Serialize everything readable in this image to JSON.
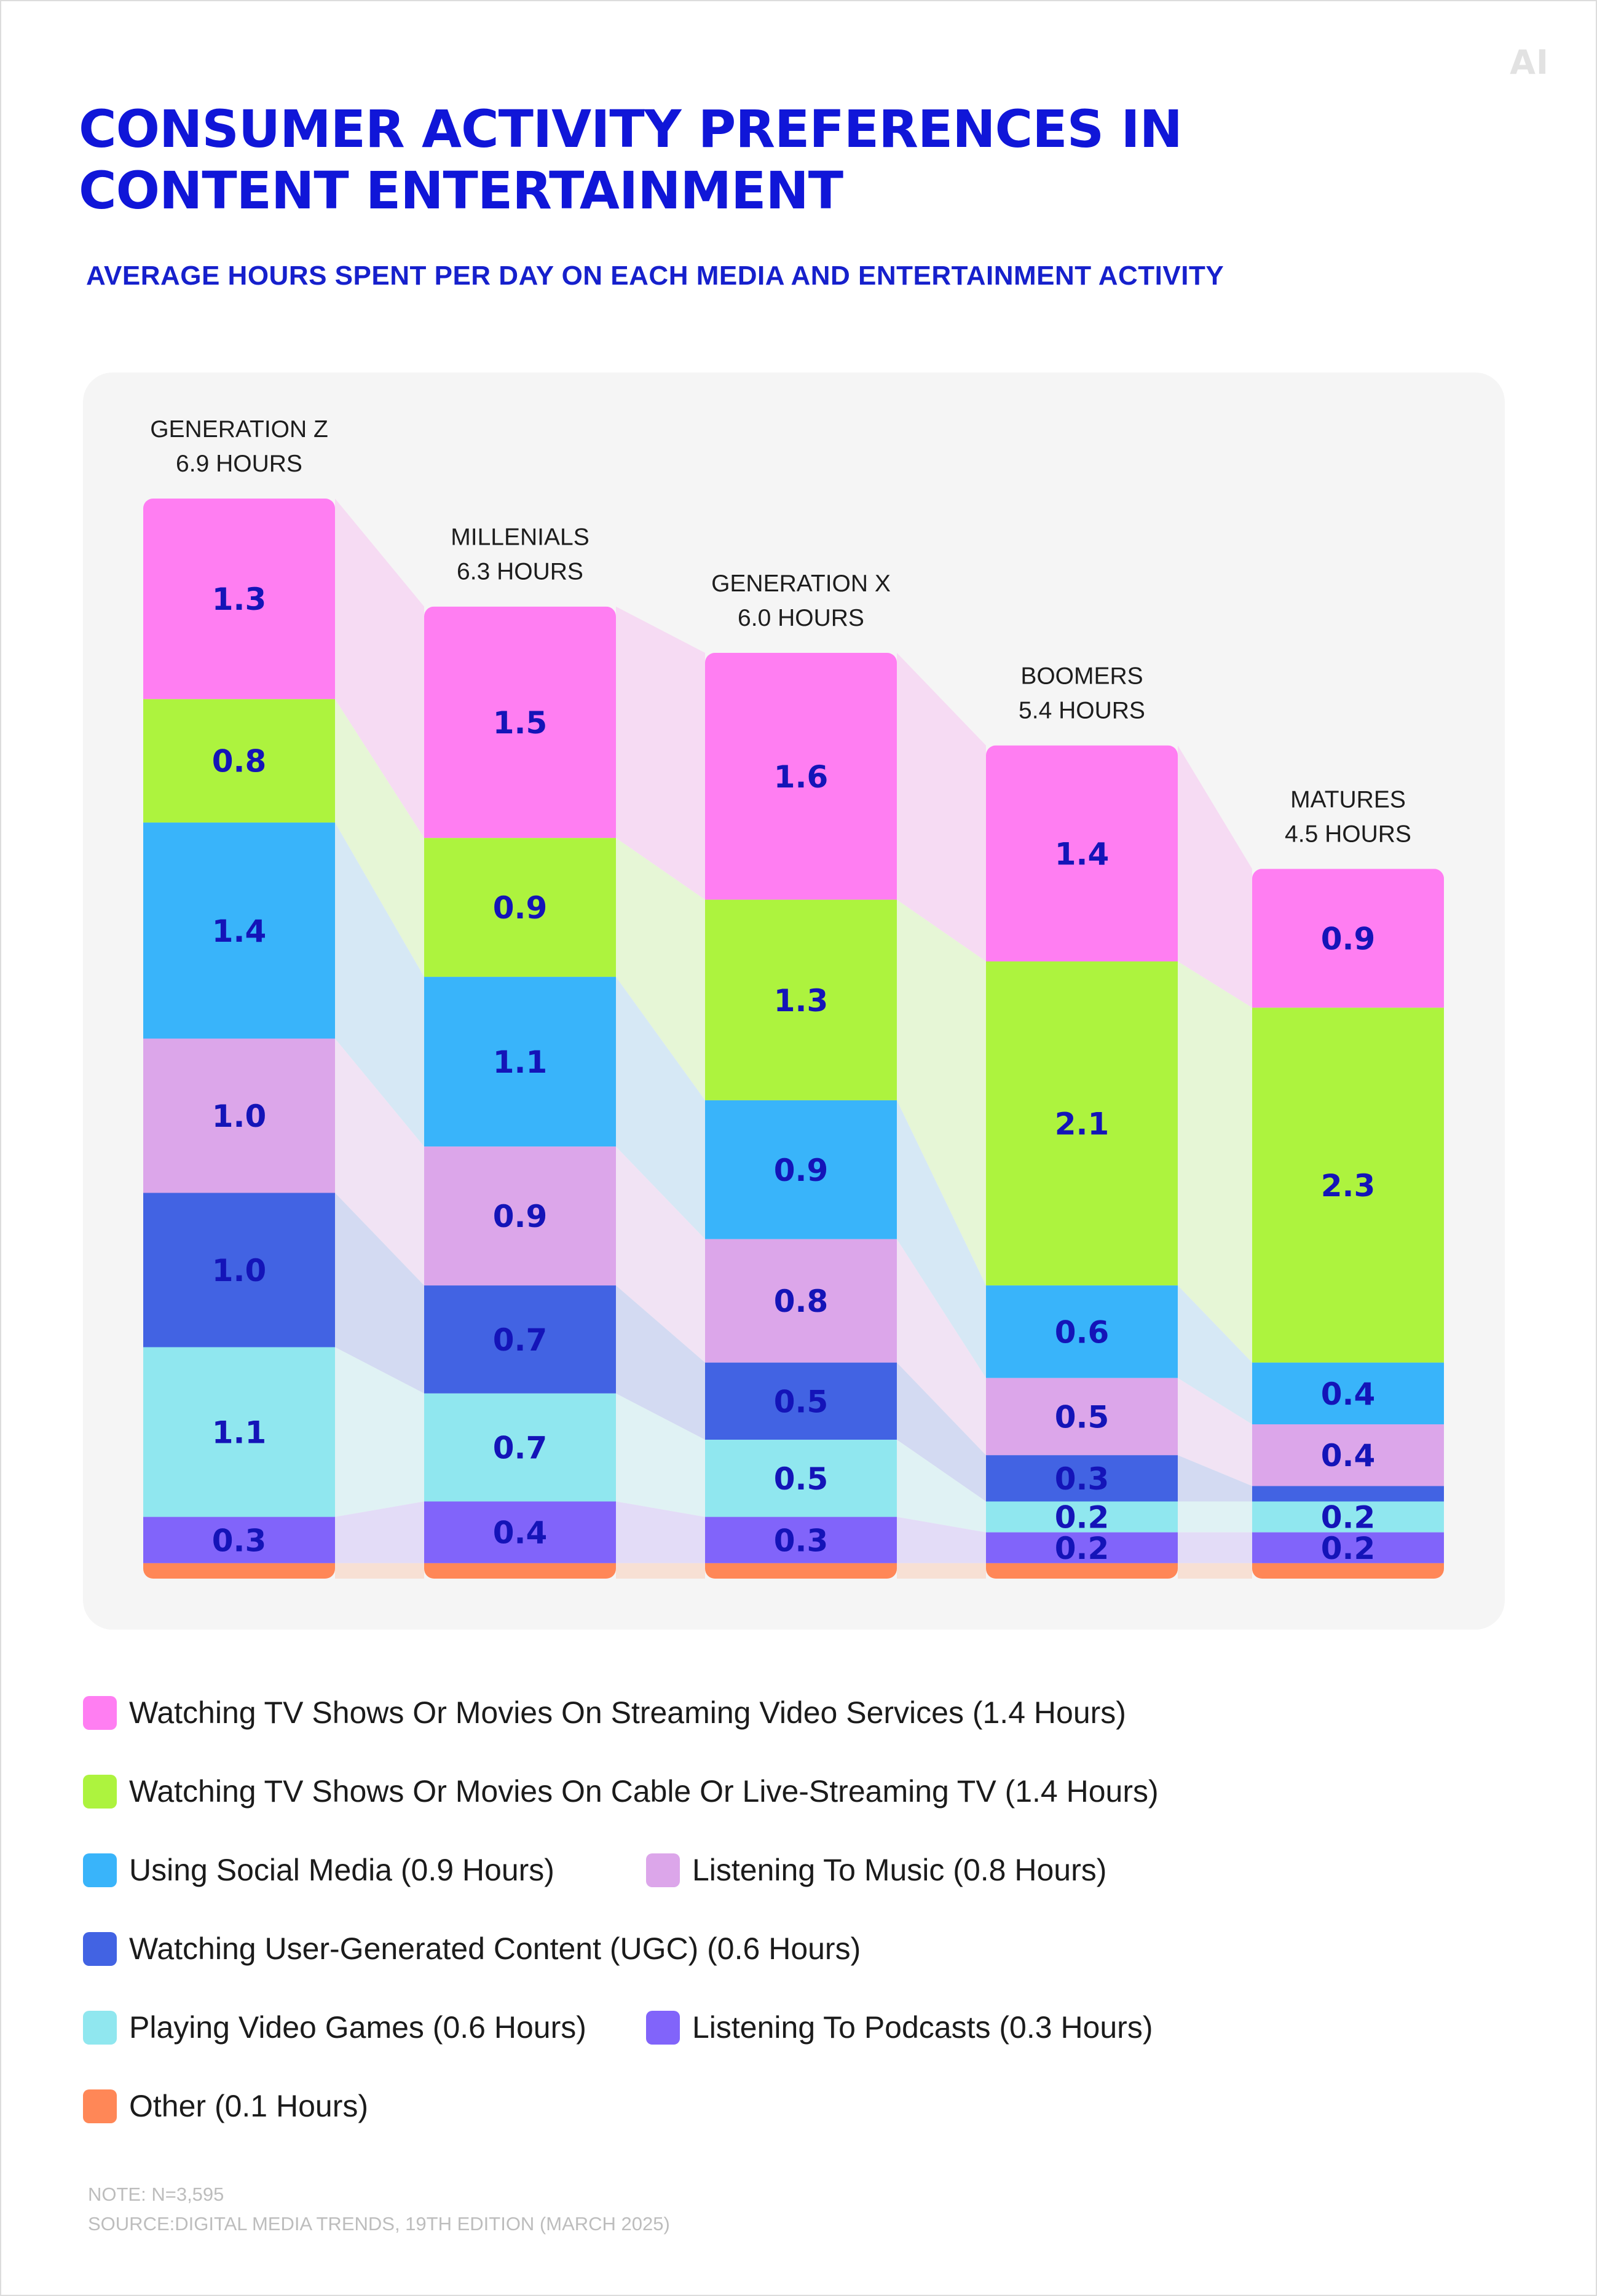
{
  "logo": "AI",
  "title": "CONSUMER ACTIVITY PREFERENCES IN CONTENT ENTERTAINMENT",
  "subtitle": "AVERAGE HOURS SPENT PER DAY ON EACH MEDIA AND ENTERTAINMENT ACTIVITY",
  "chart_data": {
    "type": "bar",
    "stacked": true,
    "title": "CONSUMER ACTIVITY PREFERENCES IN CONTENT ENTERTAINMENT",
    "subtitle": "AVERAGE HOURS SPENT PER DAY ON EACH MEDIA AND ENTERTAINMENT ACTIVITY",
    "xlabel": "",
    "ylabel": "",
    "unit": "hours",
    "grid": false,
    "legend_position": "bottom",
    "categories": [
      "GENERATION Z",
      "MILLENIALS",
      "GENERATION X",
      "BOOMERS",
      "MATURES"
    ],
    "category_labels": [
      [
        "GENERATION Z",
        "6.9 HOURS"
      ],
      [
        "MILLENIALS",
        "6.3 HOURS"
      ],
      [
        "GENERATION X",
        "6.0 HOURS"
      ],
      [
        "BOOMERS",
        "5.4 HOURS"
      ],
      [
        "MATURES",
        "4.5 HOURS"
      ]
    ],
    "totals": [
      6.9,
      6.3,
      6.0,
      5.4,
      4.5
    ],
    "series": [
      {
        "name": "Watching TV Shows Or Movies On Streaming Video Services",
        "color": "#ff7ef2",
        "link_color": "#f6dbf3",
        "values": [
          1.3,
          1.5,
          1.6,
          1.4,
          0.9
        ]
      },
      {
        "name": "Watching TV Shows Or Movies On Cable Or Live-Streaming TV",
        "color": "#adf33e",
        "link_color": "#e6f6d6",
        "values": [
          0.8,
          0.9,
          1.3,
          2.1,
          2.3
        ]
      },
      {
        "name": "Using Social Media",
        "color": "#39b4fa",
        "link_color": "#d6e8f5",
        "values": [
          1.4,
          1.1,
          0.9,
          0.6,
          0.4
        ]
      },
      {
        "name": "Listening To Music",
        "color": "#dca6ea",
        "link_color": "#f1e3f4",
        "values": [
          1.0,
          0.9,
          0.8,
          0.5,
          0.4
        ]
      },
      {
        "name": "Watching User-Generated Content (UGC)",
        "color": "#4263e3",
        "link_color": "#d3daf2",
        "values": [
          1.0,
          0.7,
          0.5,
          0.3,
          0.1
        ]
      },
      {
        "name": "Playing Video Games",
        "color": "#90e7ef",
        "link_color": "#e0f2f4",
        "values": [
          1.1,
          0.7,
          0.5,
          0.2,
          0.2
        ]
      },
      {
        "name": "Listening To Podcasts",
        "color": "#8164fa",
        "link_color": "#e3dcf7",
        "values": [
          0.3,
          0.4,
          0.3,
          0.2,
          0.2
        ]
      },
      {
        "name": "Other",
        "color": "#ff8757",
        "link_color": "#f7e0d4",
        "values": [
          0.1,
          0.1,
          0.1,
          0.1,
          0.1
        ]
      }
    ],
    "value_labels": [
      [
        "1.3",
        "0.8",
        "1.4",
        "1.0",
        "1.0",
        "1.1",
        "0.3",
        ""
      ],
      [
        "1.5",
        "0.9",
        "1.1",
        "0.9",
        "0.7",
        "0.7",
        "0.4",
        ""
      ],
      [
        "1.6",
        "1.3",
        "0.9",
        "0.8",
        "0.5",
        "0.5",
        "0.3",
        ""
      ],
      [
        "1.4",
        "2.1",
        "0.6",
        "0.5",
        "0.3",
        "0.2",
        "0.2",
        ""
      ],
      [
        "0.9",
        "2.3",
        "0.4",
        "0.4",
        "",
        "0.2",
        "0.2",
        ""
      ]
    ]
  },
  "legend": [
    {
      "label": "Watching TV Shows Or Movies On Streaming Video Services (1.4 Hours)",
      "color": "#ff7ef2"
    },
    {
      "label": "Watching TV Shows Or Movies On Cable Or Live-Streaming TV (1.4 Hours)",
      "color": "#adf33e"
    },
    {
      "label": "Using Social Media (0.9 Hours)",
      "color": "#39b4fa"
    },
    {
      "label": "Listening To Music (0.8 Hours)",
      "color": "#dca6ea"
    },
    {
      "label": "Watching User-Generated Content (UGC) (0.6 Hours)",
      "color": "#4263e3"
    },
    {
      "label": "Playing Video Games (0.6 Hours)",
      "color": "#90e7ef"
    },
    {
      "label": "Listening To Podcasts (0.3 Hours)",
      "color": "#8164fa"
    },
    {
      "label": "Other (0.1 Hours)",
      "color": "#ff8757"
    }
  ],
  "note": "NOTE: N=3,595",
  "source": "SOURCE:DIGITAL MEDIA TRENDS, 19TH EDITION (MARCH 2025)",
  "colors": {
    "accent": "#1016d8",
    "value_text": "#1414b8",
    "panel": "#f5f5f5"
  }
}
